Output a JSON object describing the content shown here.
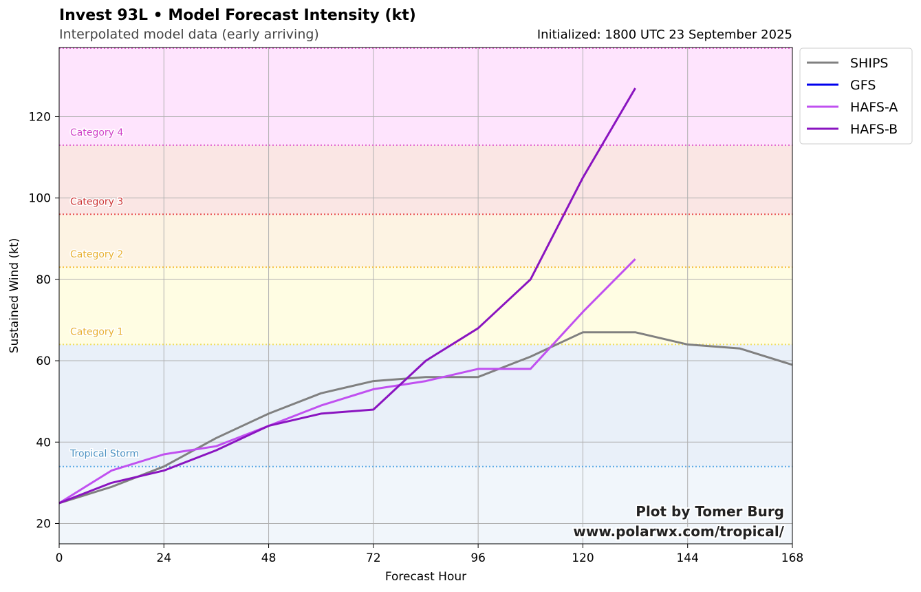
{
  "header": {
    "title": "Invest 93L • Model Forecast Intensity (kt)",
    "subtitle": "Interpolated model data (early arriving)",
    "initialized": "Initialized: 1800 UTC 23 September 2025"
  },
  "credit": {
    "line1": "Plot by Tomer Burg",
    "line2": "www.polarwx.com/tropical/"
  },
  "chart_data": {
    "type": "line",
    "xlabel": "Forecast Hour",
    "ylabel": "Sustained Wind (kt)",
    "xlim": [
      0,
      168
    ],
    "ylim": [
      15,
      137
    ],
    "xticks": [
      0,
      24,
      48,
      72,
      96,
      120,
      144,
      168
    ],
    "yticks": [
      20,
      40,
      60,
      80,
      100,
      120
    ],
    "grid": true,
    "legend_position": "outside-top-right",
    "categories": [
      {
        "name": "Tropical Storm",
        "threshold": 34,
        "line_color": "#5aa9e6",
        "label_color": "#4a90c2",
        "band_color": "#e9f0f9"
      },
      {
        "name": "Category 1",
        "threshold": 64,
        "line_color": "#f0e060",
        "label_color": "#e8b030",
        "band_color": "#fffde3"
      },
      {
        "name": "Category 2",
        "threshold": 83,
        "line_color": "#f5c040",
        "label_color": "#e8b030",
        "band_color": "#fdf3e3"
      },
      {
        "name": "Category 3",
        "threshold": 96,
        "line_color": "#e85050",
        "label_color": "#cc3333",
        "band_color": "#fae6e4"
      },
      {
        "name": "Category 4",
        "threshold": 113,
        "line_color": "#e060d0",
        "label_color": "#d040c8",
        "band_color": "#fee4fd"
      }
    ],
    "below_ts_band_color": "#f1f6fb",
    "series": [
      {
        "name": "SHIPS",
        "color": "#808080",
        "points": [
          [
            0,
            25
          ],
          [
            12,
            29
          ],
          [
            24,
            34
          ],
          [
            36,
            41
          ],
          [
            48,
            47
          ],
          [
            60,
            52
          ],
          [
            72,
            55
          ],
          [
            84,
            56
          ],
          [
            96,
            56
          ],
          [
            108,
            61
          ],
          [
            120,
            67
          ],
          [
            132,
            67
          ],
          [
            144,
            64
          ],
          [
            156,
            63
          ],
          [
            168,
            59
          ]
        ]
      },
      {
        "name": "GFS",
        "color": "#0000ee",
        "points": []
      },
      {
        "name": "HAFS-A",
        "color": "#c050f0",
        "points": [
          [
            0,
            25
          ],
          [
            12,
            33
          ],
          [
            24,
            37
          ],
          [
            36,
            39
          ],
          [
            48,
            44
          ],
          [
            60,
            49
          ],
          [
            72,
            53
          ],
          [
            84,
            55
          ],
          [
            96,
            58
          ],
          [
            108,
            58
          ],
          [
            120,
            72
          ],
          [
            132,
            85
          ]
        ]
      },
      {
        "name": "HAFS-B",
        "color": "#8a14c0",
        "points": [
          [
            0,
            25
          ],
          [
            12,
            30
          ],
          [
            24,
            33
          ],
          [
            36,
            38
          ],
          [
            48,
            44
          ],
          [
            60,
            47
          ],
          [
            72,
            48
          ],
          [
            84,
            60
          ],
          [
            96,
            68
          ],
          [
            108,
            80
          ],
          [
            120,
            105
          ],
          [
            132,
            127
          ]
        ]
      }
    ]
  }
}
